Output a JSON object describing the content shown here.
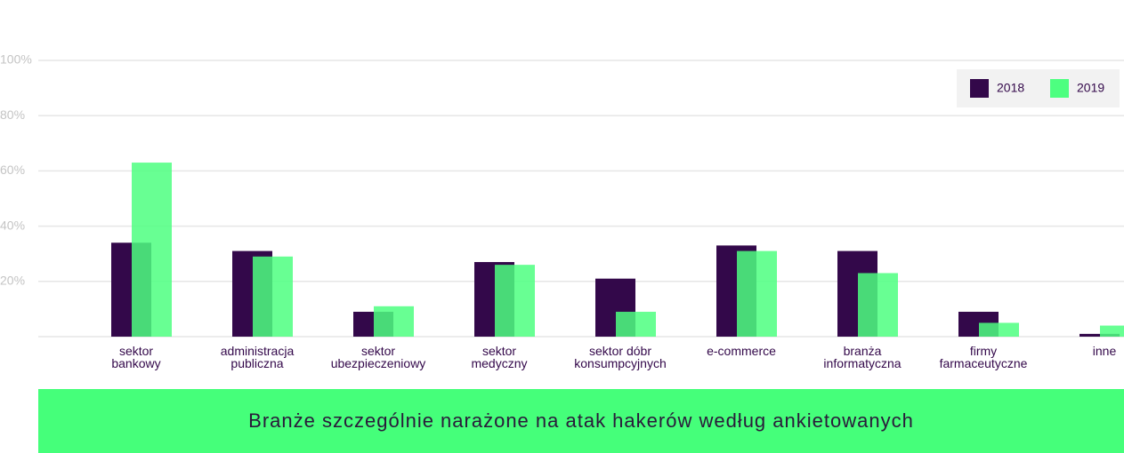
{
  "chart_data": {
    "type": "bar",
    "title": "Branże szczególnie narażone na atak hakerów według ankietowanych",
    "categories": [
      "sektor\nbankowy",
      "administracja\npubliczna",
      "sektor\nubezpieczeniowy",
      "sektor\nmedyczny",
      "sektor dóbr\nkonsumpcyjnych",
      "e-commerce",
      "branża\ninformatyczna",
      "firmy\nfarmaceutyczne",
      "inne"
    ],
    "series": [
      {
        "name": "2018",
        "color": "#33084a",
        "values": [
          34,
          31,
          9,
          27,
          21,
          33,
          31,
          9,
          1
        ]
      },
      {
        "name": "2019",
        "color": "#4dff80",
        "values": [
          63,
          29,
          11,
          26,
          9,
          31,
          23,
          5,
          4
        ]
      }
    ],
    "ylim": [
      0,
      100
    ],
    "yticks": [
      {
        "value": 20,
        "label": "20%"
      },
      {
        "value": 40,
        "label": "40%"
      },
      {
        "value": 60,
        "label": "60%"
      },
      {
        "value": 80,
        "label": "80%"
      },
      {
        "value": 100,
        "label": "100%"
      }
    ],
    "grid": true,
    "legend": "top-right"
  }
}
